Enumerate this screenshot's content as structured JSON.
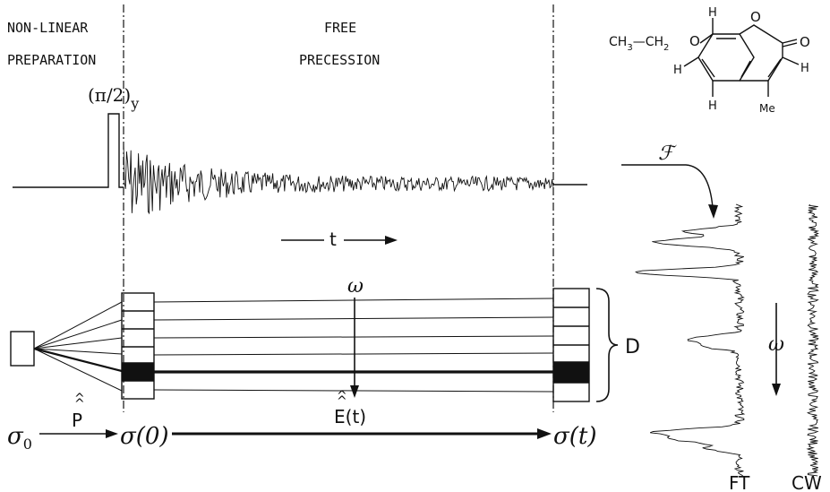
{
  "labels": {
    "nonlinear_line1": "NON-LINEAR",
    "nonlinear_line2": "PREPARATION",
    "free_line1": "FREE",
    "free_line2": "PRECESSION",
    "pulse": "(π/2)",
    "pulse_sub": "y",
    "time_axis": "t",
    "omega_top": "ω",
    "omega_side": "ω",
    "D": "D",
    "sigma0": "σ",
    "sigma0_sub": "0",
    "P_op": "P",
    "sigma_zero": "σ(0)",
    "E_op": "E(t)",
    "sigma_t": "σ(t)",
    "fourier": "ℱ",
    "FT": "FT",
    "CW": "CW"
  },
  "molecule": {
    "substituent": "CH",
    "substituent_sub": "3",
    "substituent_rest": "—CH",
    "substituent_sub2": "2",
    "O_ether": "O",
    "O_ring": "O",
    "O_carbonyl": "O",
    "H_top": "H",
    "H_left": "H",
    "H_bottom": "H",
    "H_right": "H",
    "Me": "Me"
  }
}
